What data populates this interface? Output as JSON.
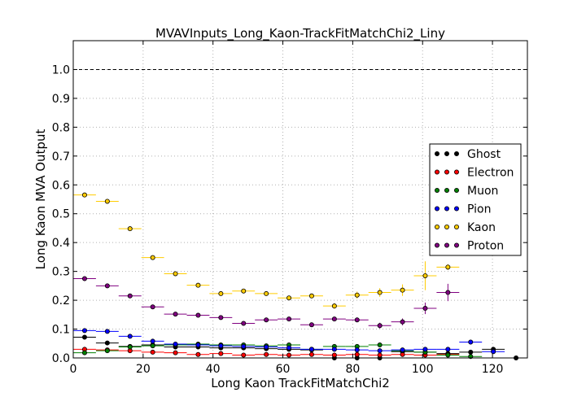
{
  "chart_data": {
    "type": "scatter",
    "title": "MVAVInputs_Long_Kaon-TrackFitMatchChi2_Liny",
    "xlabel": "Long Kaon TrackFitMatchChi2",
    "ylabel": "Long Kaon MVA Output",
    "xlim": [
      0,
      130
    ],
    "ylim": [
      0,
      1.1
    ],
    "xticks": [
      "0",
      "20",
      "40",
      "60",
      "80",
      "100",
      "120"
    ],
    "yticks": [
      "0.0",
      "0.1",
      "0.2",
      "0.3",
      "0.4",
      "0.5",
      "0.6",
      "0.7",
      "0.8",
      "0.9",
      "1.0"
    ],
    "grid": true,
    "reference_line": 1.0,
    "legend_position": "center-right",
    "bin_half_width": 3.25,
    "series": [
      {
        "name": "Ghost",
        "color": "#000000",
        "x": [
          3.25,
          9.75,
          16.25,
          22.75,
          29.25,
          35.75,
          42.25,
          48.75,
          55.25,
          61.75,
          68.25,
          74.75,
          81.25,
          87.75,
          94.25,
          100.75,
          107.25,
          113.75,
          120.25,
          126.75
        ],
        "y": [
          0.072,
          0.052,
          0.04,
          0.045,
          0.038,
          0.038,
          0.035,
          0.035,
          0.032,
          0.03,
          0.028,
          0.0,
          0.0,
          0.0,
          0.022,
          0.02,
          0.015,
          0.02,
          0.03,
          0.0
        ],
        "err": [
          0.004,
          0.004,
          0.004,
          0.004,
          0.004,
          0.004,
          0.004,
          0.004,
          0.004,
          0.004,
          0.004,
          0.002,
          0.002,
          0.002,
          0.005,
          0.005,
          0.006,
          0.006,
          0.008,
          0.002
        ]
      },
      {
        "name": "Electron",
        "color": "#ff0000",
        "x": [
          3.25,
          9.75,
          16.25,
          22.75,
          29.25,
          35.75,
          42.25,
          48.75,
          55.25,
          61.75,
          68.25,
          74.75,
          81.25,
          87.75,
          94.25,
          100.75,
          107.25
        ],
        "y": [
          0.03,
          0.028,
          0.025,
          0.02,
          0.018,
          0.012,
          0.015,
          0.01,
          0.012,
          0.01,
          0.012,
          0.01,
          0.012,
          0.01,
          0.012,
          0.01,
          0.012
        ],
        "err": [
          0.003,
          0.003,
          0.003,
          0.003,
          0.003,
          0.003,
          0.003,
          0.003,
          0.003,
          0.003,
          0.003,
          0.003,
          0.003,
          0.003,
          0.003,
          0.003,
          0.003
        ]
      },
      {
        "name": "Muon",
        "color": "#008000",
        "x": [
          3.25,
          9.75,
          16.25,
          22.75,
          29.25,
          35.75,
          42.25,
          48.75,
          55.25,
          61.75,
          68.25,
          74.75,
          81.25,
          87.75,
          94.25,
          100.75,
          107.25,
          113.75
        ],
        "y": [
          0.018,
          0.025,
          0.038,
          0.042,
          0.045,
          0.048,
          0.045,
          0.045,
          0.042,
          0.045,
          0.03,
          0.04,
          0.04,
          0.045,
          0.025,
          0.02,
          0.01,
          0.005
        ],
        "err": [
          0.003,
          0.003,
          0.003,
          0.003,
          0.003,
          0.003,
          0.003,
          0.003,
          0.003,
          0.003,
          0.003,
          0.003,
          0.003,
          0.003,
          0.003,
          0.003,
          0.003,
          0.003
        ]
      },
      {
        "name": "Pion",
        "color": "#0000ff",
        "x": [
          3.25,
          9.75,
          16.25,
          22.75,
          29.25,
          35.75,
          42.25,
          48.75,
          55.25,
          61.75,
          68.25,
          74.75,
          81.25,
          87.75,
          94.25,
          100.75,
          107.25,
          113.75,
          120.25
        ],
        "y": [
          0.095,
          0.092,
          0.075,
          0.058,
          0.048,
          0.045,
          0.042,
          0.04,
          0.038,
          0.035,
          0.03,
          0.03,
          0.028,
          0.025,
          0.028,
          0.03,
          0.03,
          0.055,
          0.022
        ],
        "err": [
          0.003,
          0.003,
          0.003,
          0.003,
          0.003,
          0.003,
          0.003,
          0.003,
          0.003,
          0.003,
          0.003,
          0.003,
          0.003,
          0.003,
          0.004,
          0.005,
          0.005,
          0.008,
          0.006
        ]
      },
      {
        "name": "Kaon",
        "color": "#ffcc00",
        "x": [
          3.25,
          9.75,
          16.25,
          22.75,
          29.25,
          35.75,
          42.25,
          48.75,
          55.25,
          61.75,
          68.25,
          74.75,
          81.25,
          87.75,
          94.25,
          100.75,
          107.25
        ],
        "y": [
          0.565,
          0.543,
          0.448,
          0.348,
          0.292,
          0.252,
          0.223,
          0.232,
          0.223,
          0.208,
          0.215,
          0.18,
          0.218,
          0.227,
          0.235,
          0.285,
          0.315
        ],
        "err": [
          0.004,
          0.004,
          0.004,
          0.004,
          0.004,
          0.004,
          0.004,
          0.005,
          0.005,
          0.006,
          0.008,
          0.01,
          0.012,
          0.015,
          0.02,
          0.05,
          0.01
        ]
      },
      {
        "name": "Proton",
        "color": "#800080",
        "x": [
          3.25,
          9.75,
          16.25,
          22.75,
          29.25,
          35.75,
          42.25,
          48.75,
          55.25,
          61.75,
          68.25,
          74.75,
          81.25,
          87.75,
          94.25,
          100.75,
          107.25
        ],
        "y": [
          0.275,
          0.25,
          0.215,
          0.177,
          0.152,
          0.148,
          0.14,
          0.12,
          0.132,
          0.135,
          0.115,
          0.135,
          0.132,
          0.112,
          0.125,
          0.172,
          0.227
        ],
        "err": [
          0.004,
          0.004,
          0.004,
          0.004,
          0.004,
          0.004,
          0.004,
          0.005,
          0.005,
          0.005,
          0.006,
          0.007,
          0.008,
          0.01,
          0.012,
          0.02,
          0.03
        ]
      }
    ]
  }
}
